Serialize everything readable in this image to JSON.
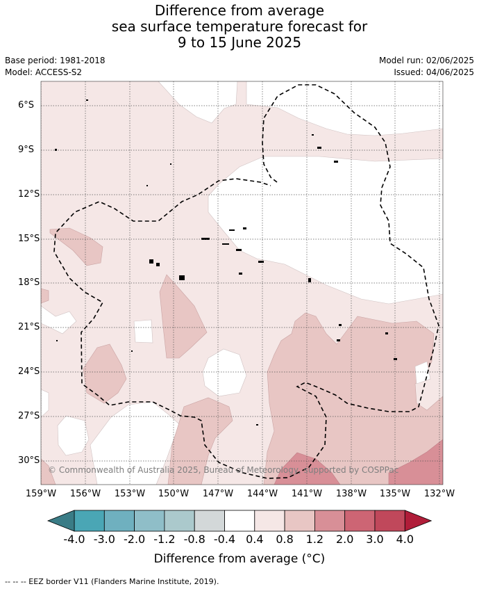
{
  "title": {
    "line1": "Difference from average",
    "line2": "sea surface temperature forecast for",
    "line3": "9 to 15 June 2025"
  },
  "info": {
    "base_period": "Base period: 1981-2018",
    "model": "Model: ACCESS-S2",
    "model_run": "Model run: 02/06/2025",
    "issued": "Issued: 04/06/2025"
  },
  "map": {
    "lat_labels": [
      "6°S",
      "9°S",
      "12°S",
      "15°S",
      "18°S",
      "21°S",
      "24°S",
      "27°S",
      "30°S"
    ],
    "lon_labels": [
      "159°W",
      "156°W",
      "153°W",
      "150°W",
      "147°W",
      "144°W",
      "141°W",
      "138°W",
      "135°W",
      "132°W"
    ],
    "copyright": "© Commonwealth of Australia 2025, Bureau of Meteorology, supported by COSPPac",
    "colors": {
      "c04_08": "#f5e7e6",
      "c08_12": "#e8c6c4",
      "c12_20": "#d88f97",
      "neutral": "#ffffff",
      "eez": "#000000",
      "grid": "#555555"
    }
  },
  "colorbar": {
    "labels": [
      "-4.0",
      "-3.0",
      "-2.0",
      "-1.2",
      "-0.8",
      "-0.4",
      "0.4",
      "0.8",
      "1.2",
      "2.0",
      "3.0",
      "4.0"
    ],
    "colors": [
      "#3d8590",
      "#4aa6b5",
      "#6fb0bf",
      "#8fbec8",
      "#abc9cc",
      "#d3d8d9",
      "#ffffff",
      "#f5e7e6",
      "#e8c6c4",
      "#d88f97",
      "#cd6574",
      "#c0485b"
    ],
    "under_color": "#3a7c86",
    "over_color": "#b01d39",
    "title": "Difference from average (°C)"
  },
  "footnote": "--  --  -- EEZ border V11 (Flanders Marine Institute, 2019)."
}
